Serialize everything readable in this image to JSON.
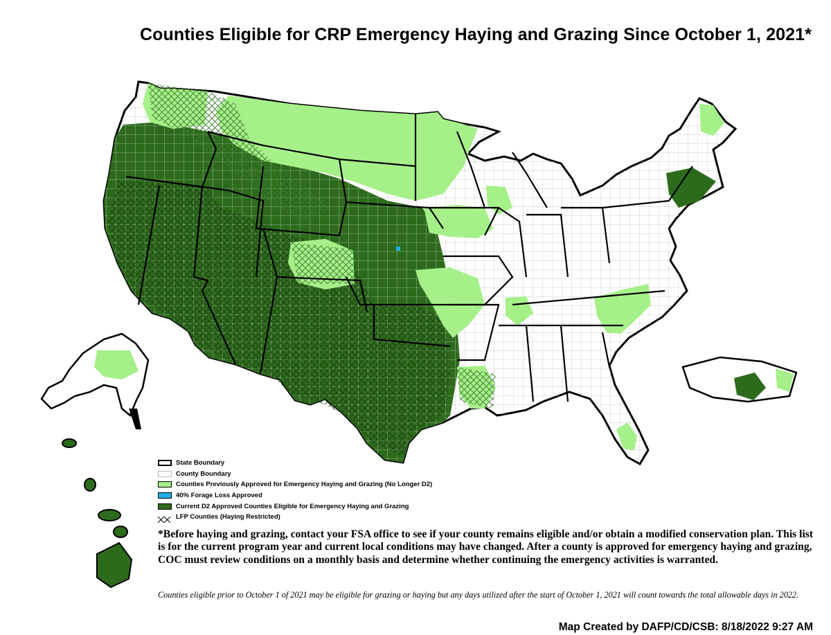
{
  "title": "Counties Eligible for CRP Emergency Haying and Grazing Since October 1, 2021*",
  "colors": {
    "current_d2": "#2d6b1c",
    "previously_approved": "#a6f08a",
    "forage_loss": "#1fb0ea",
    "county_boundary": "#ffffff",
    "state_boundary": "#000000",
    "not_eligible": "#ffffff"
  },
  "legend": [
    {
      "key": "state-boundary",
      "label": "State Boundary",
      "swatch": "state"
    },
    {
      "key": "county-boundary",
      "label": "County Boundary",
      "swatch": "county"
    },
    {
      "key": "previously-approved",
      "label": "Counties Previously Approved for Emergency Haying and Grazing (No Longer D2)",
      "swatch": "light"
    },
    {
      "key": "forage-loss",
      "label": "40% Forage Loss Approved",
      "swatch": "blue"
    },
    {
      "key": "current-d2",
      "label": "Current D2 Approved Counties Eligible for Emergency Haying and Grazing",
      "swatch": "dark"
    },
    {
      "key": "lfp",
      "label": "LFP Counties (Haying Restricted)",
      "swatch": "hatch"
    }
  ],
  "notice": "*Before haying and grazing, contact your FSA office to see if your county remains eligible and/or obtain a modified conservation plan. This list is for the current program year and current local conditions may have changed. After a county is approved for emergency haying and grazing, COC must review conditions on a monthly basis and determine whether continuing the emergency activities is warranted.",
  "footnote": "Counties eligible prior to October 1 of 2021 may be eligible for grazing or haying but any days utilized after the start of October 1, 2021 will count towards the total allowable days in 2022.",
  "credit": "Map Created by DAFP/CD/CSB: 8/18/2022 9:27 AM"
}
